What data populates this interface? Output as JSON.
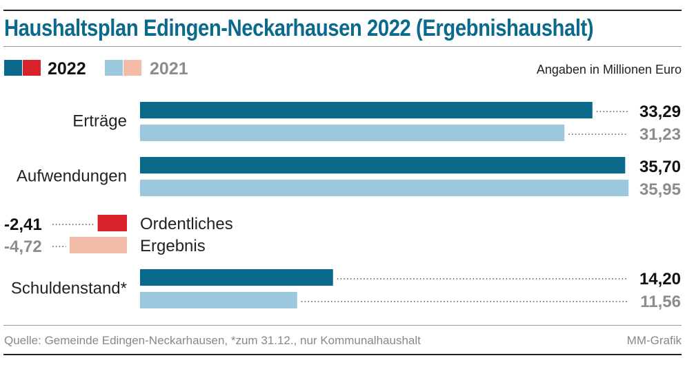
{
  "title": "Haushaltsplan Edingen-Neckarhausen 2022 (Ergebnishaushalt)",
  "units": "Angaben in Millionen Euro",
  "legend": [
    {
      "label": "2022",
      "colors": [
        "#0b6a8c",
        "#d9212a"
      ],
      "text_color": "#111111"
    },
    {
      "label": "2021",
      "colors": [
        "#9bc8dd",
        "#f2bca9"
      ],
      "text_color": "#8c8c8c"
    }
  ],
  "footer": {
    "source": "Quelle: Gemeinde Edingen-Neckarhausen, *zum 31.12., nur Kommunalhaushalt",
    "credit": "MM-Grafik"
  },
  "chart_data": {
    "type": "bar",
    "orientation": "horizontal",
    "unit": "Millionen Euro",
    "series": [
      {
        "name": "2022",
        "color": "#0b6a8c",
        "negative_color": "#d9212a"
      },
      {
        "name": "2021",
        "color": "#9bc8dd",
        "negative_color": "#f2bca9"
      }
    ],
    "categories": [
      {
        "label": "Erträge",
        "values": [
          33.29,
          31.23
        ],
        "labels": [
          "33,29",
          "31,23"
        ]
      },
      {
        "label": "Aufwendungen",
        "values": [
          35.7,
          35.95
        ],
        "labels": [
          "35,70",
          "35,95"
        ]
      },
      {
        "label": "Ordentliches Ergebnis",
        "label_lines": [
          "Ordentliches",
          "Ergebnis"
        ],
        "values": [
          -2.41,
          -4.72
        ],
        "labels": [
          "-2,41",
          "-4,72"
        ]
      },
      {
        "label": "Schuldenstand*",
        "values": [
          14.2,
          11.56
        ],
        "labels": [
          "14,20",
          "11,56"
        ]
      }
    ]
  }
}
